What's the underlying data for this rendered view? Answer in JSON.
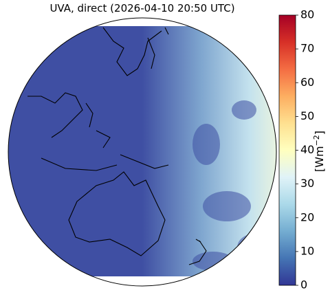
{
  "chart_data": {
    "type": "map",
    "title": "UVA, direct (2026-04-10 20:50 UTC)",
    "colorbar": {
      "label": [
        "[Wm",
        "−2",
        "]"
      ],
      "lim": [
        0,
        80
      ],
      "ticks": [
        0,
        10,
        20,
        30,
        40,
        50,
        60,
        70,
        80
      ],
      "colors": [
        "#313695",
        "#4575b4",
        "#74add1",
        "#abd9e9",
        "#e0f3f8",
        "#ffffbf",
        "#fee090",
        "#fdae61",
        "#f46d43",
        "#d73027",
        "#a50026"
      ]
    }
  }
}
